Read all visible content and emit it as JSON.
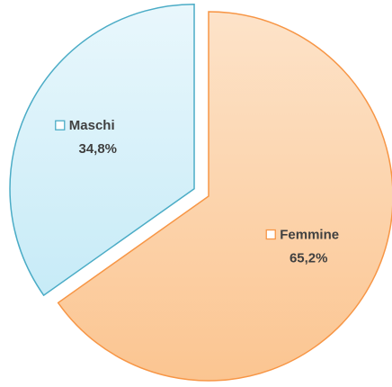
{
  "chart_data": {
    "type": "pie",
    "categories": [
      "Maschi",
      "Femmine"
    ],
    "values": [
      34.8,
      65.2
    ],
    "value_labels": [
      "34,8%",
      "65,2%"
    ],
    "colors": [
      "#4bacc6",
      "#f79646"
    ],
    "exploded": [
      true,
      false
    ]
  }
}
